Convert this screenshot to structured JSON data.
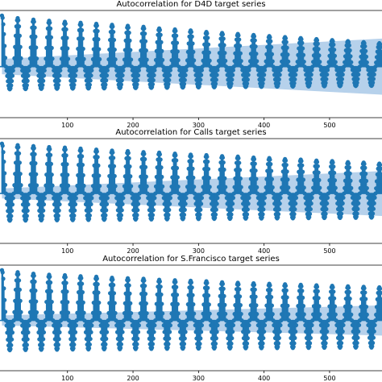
{
  "chart_data": [
    {
      "type": "scatter",
      "title": "Autocorrelation for D4D target series",
      "xlabel": "",
      "ylabel": "",
      "xlim": [
        -3,
        580
      ],
      "ylim": [
        -1.0,
        1.1
      ],
      "xticks": [
        100,
        200,
        300,
        400,
        500
      ],
      "xtick_labels": [
        "100",
        "200",
        "300",
        "400",
        "500"
      ],
      "period": 24,
      "peak_lags": [
        0,
        24,
        48,
        72,
        96,
        120,
        144,
        168,
        192,
        216,
        240,
        264,
        288,
        312,
        336,
        360,
        384,
        408,
        432,
        456,
        480,
        504,
        528,
        552,
        576
      ],
      "peak_values": [
        1.0,
        0.95,
        0.92,
        0.9,
        0.88,
        0.86,
        0.84,
        0.82,
        0.8,
        0.78,
        0.75,
        0.73,
        0.71,
        0.68,
        0.66,
        0.64,
        0.62,
        0.6,
        0.58,
        0.56,
        0.54,
        0.52,
        0.5,
        0.48,
        0.46
      ],
      "trough_value": -0.45,
      "confidence_band": {
        "x": [
          0,
          580
        ],
        "upper": [
          0.15,
          0.55
        ],
        "lower": [
          -0.15,
          -0.55
        ]
      },
      "grid": false,
      "series_color": "#1f77b4",
      "band_color": "#a9c9e8"
    },
    {
      "type": "scatter",
      "title": "Autocorrelation for Calls target series",
      "xlabel": "",
      "ylabel": "",
      "xlim": [
        -3,
        580
      ],
      "ylim": [
        -1.0,
        1.1
      ],
      "xticks": [
        100,
        200,
        300,
        400,
        500
      ],
      "xtick_labels": [
        "100",
        "200",
        "300",
        "400",
        "500"
      ],
      "period": 24,
      "peak_lags": [
        0,
        24,
        48,
        72,
        96,
        120,
        144,
        168,
        192,
        216,
        240,
        264,
        288,
        312,
        336,
        360,
        384,
        408,
        432,
        456,
        480,
        504,
        528,
        552,
        576
      ],
      "peak_values": [
        1.0,
        0.97,
        0.95,
        0.93,
        0.92,
        0.9,
        0.88,
        0.86,
        0.85,
        0.83,
        0.82,
        0.8,
        0.78,
        0.77,
        0.75,
        0.74,
        0.72,
        0.71,
        0.69,
        0.68,
        0.66,
        0.65,
        0.63,
        0.62,
        0.6
      ],
      "trough_value": -0.55,
      "confidence_band": {
        "x": [
          0,
          580
        ],
        "upper": [
          0.1,
          0.45
        ],
        "lower": [
          -0.1,
          -0.45
        ]
      },
      "grid": false,
      "series_color": "#1f77b4",
      "band_color": "#a9c9e8"
    },
    {
      "type": "scatter",
      "title": "Autocorrelation for S.Francisco target series",
      "xlabel": "",
      "ylabel": "",
      "xlim": [
        -3,
        580
      ],
      "ylim": [
        -1.0,
        1.1
      ],
      "xticks": [
        100,
        200,
        300,
        400,
        500
      ],
      "xtick_labels": [
        "100",
        "200",
        "300",
        "400",
        "500"
      ],
      "period": 24,
      "peak_lags": [
        0,
        24,
        48,
        72,
        96,
        120,
        144,
        168,
        192,
        216,
        240,
        264,
        288,
        312,
        336,
        360,
        384,
        408,
        432,
        456,
        480,
        504,
        528,
        552,
        576
      ],
      "peak_values": [
        1.0,
        0.96,
        0.93,
        0.91,
        0.9,
        0.88,
        0.87,
        0.85,
        0.84,
        0.83,
        0.81,
        0.8,
        0.79,
        0.78,
        0.76,
        0.75,
        0.74,
        0.73,
        0.72,
        0.71,
        0.7,
        0.69,
        0.68,
        0.67,
        0.66
      ],
      "trough_value": -0.6,
      "confidence_band": {
        "x": [
          0,
          580
        ],
        "upper": [
          0.1,
          0.3
        ],
        "lower": [
          -0.1,
          -0.3
        ]
      },
      "grid": false,
      "series_color": "#1f77b4",
      "band_color": "#a9c9e8"
    }
  ]
}
